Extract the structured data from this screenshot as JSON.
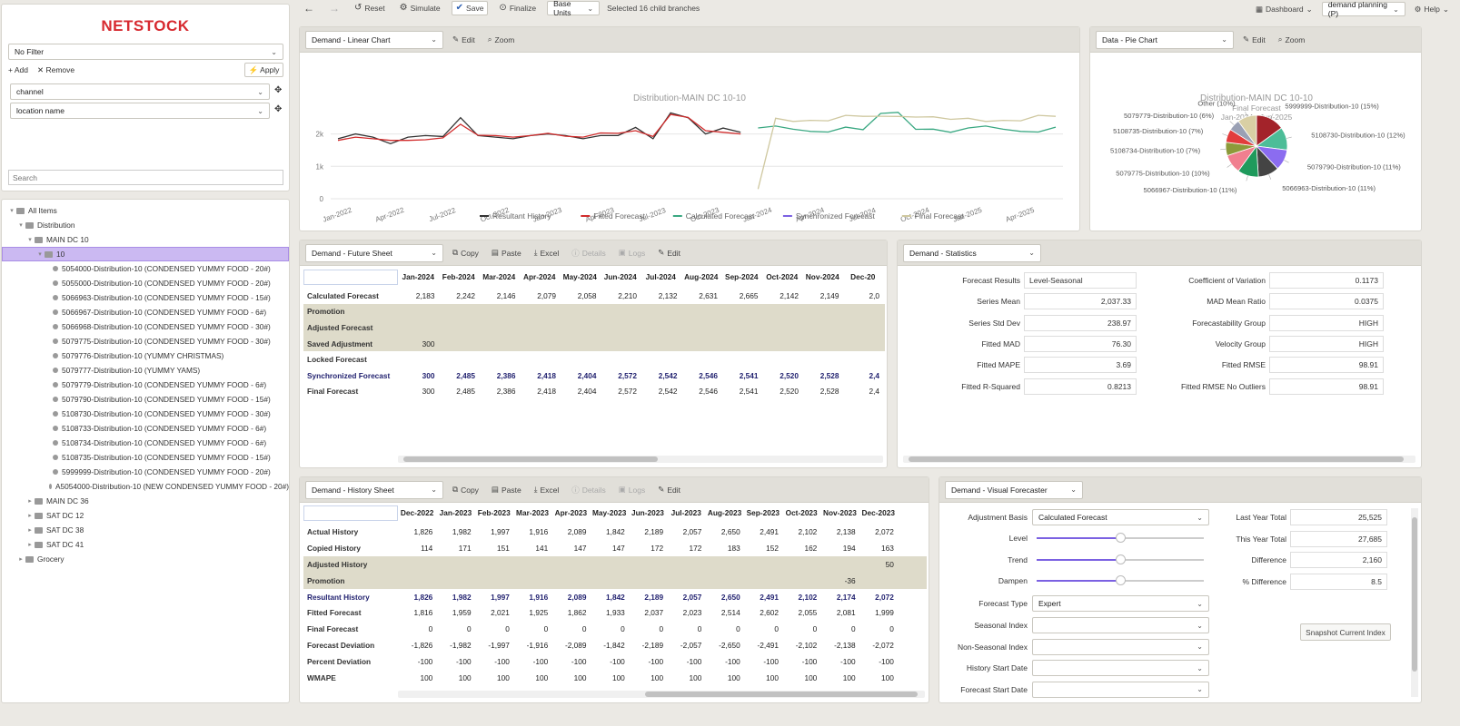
{
  "logo": "NETSTOCK",
  "toolbar": {
    "reset": "Reset",
    "simulate": "Simulate",
    "save": "Save",
    "finalize": "Finalize",
    "units": "Base Units",
    "selection": "Selected 16 child branches",
    "dashboard": "Dashboard",
    "plan": "demand planning (P)",
    "help": "Help"
  },
  "filter": {
    "value": "No Filter",
    "add": "Add",
    "remove": "Remove",
    "apply": "Apply",
    "fields": [
      "channel",
      "location name"
    ],
    "search_placeholder": "Search"
  },
  "tree": [
    {
      "label": "All Items",
      "level": 0,
      "type": "folder",
      "expanded": true
    },
    {
      "label": "Distribution",
      "level": 1,
      "type": "folder",
      "expanded": true
    },
    {
      "label": "MAIN DC 10",
      "level": 2,
      "type": "folder",
      "expanded": true
    },
    {
      "label": "10",
      "level": 3,
      "type": "folder",
      "expanded": true,
      "selected": true
    },
    {
      "label": "5054000-Distribution-10 (CONDENSED YUMMY FOOD - 20#)",
      "level": 4,
      "type": "item"
    },
    {
      "label": "5055000-Distribution-10 (CONDENSED YUMMY FOOD - 20#)",
      "level": 4,
      "type": "item"
    },
    {
      "label": "5066963-Distribution-10 (CONDENSED YUMMY FOOD - 15#)",
      "level": 4,
      "type": "item"
    },
    {
      "label": "5066967-Distribution-10 (CONDENSED YUMMY FOOD - 6#)",
      "level": 4,
      "type": "item"
    },
    {
      "label": "5066968-Distribution-10 (CONDENSED YUMMY FOOD - 30#)",
      "level": 4,
      "type": "item"
    },
    {
      "label": "5079775-Distribution-10 (CONDENSED YUMMY FOOD - 30#)",
      "level": 4,
      "type": "item"
    },
    {
      "label": "5079776-Distribution-10 (YUMMY CHRISTMAS)",
      "level": 4,
      "type": "item"
    },
    {
      "label": "5079777-Distribution-10 (YUMMY YAMS)",
      "level": 4,
      "type": "item"
    },
    {
      "label": "5079779-Distribution-10 (CONDENSED YUMMY FOOD - 6#)",
      "level": 4,
      "type": "item"
    },
    {
      "label": "5079790-Distribution-10 (CONDENSED YUMMY FOOD - 15#)",
      "level": 4,
      "type": "item"
    },
    {
      "label": "5108730-Distribution-10 (CONDENSED YUMMY FOOD - 30#)",
      "level": 4,
      "type": "item"
    },
    {
      "label": "5108733-Distribution-10 (CONDENSED YUMMY FOOD - 6#)",
      "level": 4,
      "type": "item"
    },
    {
      "label": "5108734-Distribution-10 (CONDENSED YUMMY FOOD - 6#)",
      "level": 4,
      "type": "item"
    },
    {
      "label": "5108735-Distribution-10 (CONDENSED YUMMY FOOD - 15#)",
      "level": 4,
      "type": "item"
    },
    {
      "label": "5999999-Distribution-10 (CONDENSED YUMMY FOOD - 20#)",
      "level": 4,
      "type": "item"
    },
    {
      "label": "A5054000-Distribution-10 (NEW CONDENSED YUMMY FOOD - 20#)",
      "level": 4,
      "type": "item"
    },
    {
      "label": "MAIN DC 36",
      "level": 2,
      "type": "folder",
      "expanded": false
    },
    {
      "label": "SAT DC 12",
      "level": 2,
      "type": "folder",
      "expanded": false
    },
    {
      "label": "SAT DC 38",
      "level": 2,
      "type": "folder",
      "expanded": false
    },
    {
      "label": "SAT DC 41",
      "level": 2,
      "type": "folder",
      "expanded": false
    },
    {
      "label": "Grocery",
      "level": 1,
      "type": "folder",
      "expanded": false
    }
  ],
  "linear": {
    "select": "Demand - Linear Chart",
    "edit": "Edit",
    "zoom": "Zoom"
  },
  "pie": {
    "select": "Data - Pie Chart",
    "edit": "Edit",
    "zoom": "Zoom"
  },
  "future": {
    "select": "Demand - Future Sheet",
    "tools": [
      "Copy",
      "Paste",
      "Excel",
      "Details",
      "Logs",
      "Edit"
    ],
    "months": [
      "Jan-2024",
      "Feb-2024",
      "Mar-2024",
      "Apr-2024",
      "May-2024",
      "Jun-2024",
      "Jul-2024",
      "Aug-2024",
      "Sep-2024",
      "Oct-2024",
      "Nov-2024",
      "Dec-20"
    ],
    "rows": [
      {
        "label": "Calculated Forecast",
        "shade": false,
        "values": [
          "2,183",
          "2,242",
          "2,146",
          "2,079",
          "2,058",
          "2,210",
          "2,132",
          "2,631",
          "2,665",
          "2,142",
          "2,149",
          "2,0"
        ]
      },
      {
        "label": "Promotion",
        "shade": true,
        "values": []
      },
      {
        "label": "Adjusted Forecast",
        "shade": true,
        "values": []
      },
      {
        "label": "Saved Adjustment",
        "shade": true,
        "values": [
          "300"
        ]
      },
      {
        "label": "Locked Forecast",
        "shade": false,
        "values": []
      },
      {
        "label": "Synchronized Forecast",
        "shade": false,
        "color": "#1f1f6e",
        "values": [
          "300",
          "2,485",
          "2,386",
          "2,418",
          "2,404",
          "2,572",
          "2,542",
          "2,546",
          "2,541",
          "2,520",
          "2,528",
          "2,4"
        ]
      },
      {
        "label": "Final Forecast",
        "shade": false,
        "values": [
          "300",
          "2,485",
          "2,386",
          "2,418",
          "2,404",
          "2,572",
          "2,542",
          "2,546",
          "2,541",
          "2,520",
          "2,528",
          "2,4"
        ]
      }
    ]
  },
  "stats": {
    "select": "Demand - Statistics",
    "items": [
      {
        "label": "Forecast Results",
        "value": "Level-Seasonal",
        "align": "left"
      },
      {
        "label": "Series Mean",
        "value": "2,037.33"
      },
      {
        "label": "Series Std Dev",
        "value": "238.97"
      },
      {
        "label": "Fitted MAD",
        "value": "76.30"
      },
      {
        "label": "Fitted MAPE",
        "value": "3.69"
      },
      {
        "label": "Fitted R-Squared",
        "value": "0.8213"
      }
    ],
    "items2": [
      {
        "label": "Coefficient of Variation",
        "value": "0.1173"
      },
      {
        "label": "MAD Mean Ratio",
        "value": "0.0375"
      },
      {
        "label": "Forecastability Group",
        "value": "HIGH"
      },
      {
        "label": "Velocity Group",
        "value": "HIGH"
      },
      {
        "label": "Fitted RMSE",
        "value": "98.91"
      },
      {
        "label": "Fitted RMSE No Outliers",
        "value": "98.91"
      }
    ]
  },
  "history": {
    "select": "Demand - History Sheet",
    "tools": [
      "Copy",
      "Paste",
      "Excel",
      "Details",
      "Logs",
      "Edit"
    ],
    "months": [
      "Dec-2022",
      "Jan-2023",
      "Feb-2023",
      "Mar-2023",
      "Apr-2023",
      "May-2023",
      "Jun-2023",
      "Jul-2023",
      "Aug-2023",
      "Sep-2023",
      "Oct-2023",
      "Nov-2023",
      "Dec-2023"
    ],
    "rows": [
      {
        "label": "Actual History",
        "shade": false,
        "values": [
          "1,826",
          "1,982",
          "1,997",
          "1,916",
          "2,089",
          "1,842",
          "2,189",
          "2,057",
          "2,650",
          "2,491",
          "2,102",
          "2,138",
          "2,072"
        ]
      },
      {
        "label": "Copied History",
        "shade": false,
        "values": [
          "114",
          "171",
          "151",
          "141",
          "147",
          "147",
          "172",
          "172",
          "183",
          "152",
          "162",
          "194",
          "163"
        ]
      },
      {
        "label": "Adjusted History",
        "shade": true,
        "values": [
          "",
          "",
          "",
          "",
          "",
          "",
          "",
          "",
          "",
          "",
          "",
          "",
          "50"
        ]
      },
      {
        "label": "Promotion",
        "shade": true,
        "values": [
          "",
          "",
          "",
          "",
          "",
          "",
          "",
          "",
          "",
          "",
          "",
          "-36",
          ""
        ]
      },
      {
        "label": "Resultant History",
        "shade": false,
        "color": "#1f1f6e",
        "values": [
          "1,826",
          "1,982",
          "1,997",
          "1,916",
          "2,089",
          "1,842",
          "2,189",
          "2,057",
          "2,650",
          "2,491",
          "2,102",
          "2,174",
          "2,072"
        ]
      },
      {
        "label": "Fitted Forecast",
        "shade": false,
        "values": [
          "1,816",
          "1,959",
          "2,021",
          "1,925",
          "1,862",
          "1,933",
          "2,037",
          "2,023",
          "2,514",
          "2,602",
          "2,055",
          "2,081",
          "1,999"
        ]
      },
      {
        "label": "Final Forecast",
        "shade": false,
        "values": [
          "0",
          "0",
          "0",
          "0",
          "0",
          "0",
          "0",
          "0",
          "0",
          "0",
          "0",
          "0",
          "0"
        ]
      },
      {
        "label": "Forecast Deviation",
        "shade": false,
        "values": [
          "-1,826",
          "-1,982",
          "-1,997",
          "-1,916",
          "-2,089",
          "-1,842",
          "-2,189",
          "-2,057",
          "-2,650",
          "-2,491",
          "-2,102",
          "-2,138",
          "-2,072"
        ]
      },
      {
        "label": "Percent Deviation",
        "shade": false,
        "values": [
          "-100",
          "-100",
          "-100",
          "-100",
          "-100",
          "-100",
          "-100",
          "-100",
          "-100",
          "-100",
          "-100",
          "-100",
          "-100"
        ]
      },
      {
        "label": "WMAPE",
        "shade": false,
        "values": [
          "100",
          "100",
          "100",
          "100",
          "100",
          "100",
          "100",
          "100",
          "100",
          "100",
          "100",
          "100",
          "100"
        ]
      }
    ]
  },
  "visual": {
    "select": "Demand - Visual Forecaster",
    "adjustment_basis_label": "Adjustment Basis",
    "adjustment_basis": "Calculated Forecast",
    "sliders": [
      {
        "label": "Level",
        "value": 0.5
      },
      {
        "label": "Trend",
        "value": 0.5
      },
      {
        "label": "Dampen",
        "value": 0.5
      }
    ],
    "forecast_type_label": "Forecast Type",
    "forecast_type": "Expert",
    "fields": [
      "Seasonal Index",
      "Non-Seasonal Index",
      "History Start Date",
      "Forecast Start Date"
    ],
    "totals": [
      {
        "label": "Last Year Total",
        "value": "25,525"
      },
      {
        "label": "This Year Total",
        "value": "27,685"
      },
      {
        "label": "Difference",
        "value": "2,160"
      },
      {
        "label": "% Difference",
        "value": "8.5"
      }
    ],
    "snapshot": "Snapshot Current Index"
  },
  "chart_data": [
    {
      "type": "line",
      "title": "Distribution-MAIN DC 10-10",
      "xlabels": [
        "Jan-2022",
        "Apr-2022",
        "Jul-2022",
        "Oct-2022",
        "Jan-2023",
        "Apr-2023",
        "Jul-2023",
        "Oct-2023",
        "Jan-2024",
        "Apr-2024",
        "Jul-2024",
        "Oct-2024",
        "Jan-2025",
        "Apr-2025"
      ],
      "yticks": [
        "0",
        "1k",
        "2k"
      ],
      "ylim": [
        0,
        2800
      ],
      "grid": true,
      "legend": "bottom",
      "series": [
        {
          "name": "Resultant History",
          "color": "#333333",
          "start": 0,
          "values": [
            1850,
            2000,
            1900,
            1700,
            1900,
            1950,
            1920,
            2500,
            1950,
            1900,
            1850,
            1950,
            2000,
            1950,
            1850,
            1950,
            1950,
            2200,
            1850,
            2650,
            2500,
            2000,
            2180,
            2050
          ]
        },
        {
          "name": "Fitted Forecast",
          "color": "#d12c2c",
          "start": 0,
          "values": [
            1800,
            1900,
            1850,
            1800,
            1800,
            1820,
            1880,
            2300,
            1960,
            1950,
            1900,
            1950,
            2020,
            1930,
            1900,
            2030,
            2020,
            2100,
            1920,
            2600,
            2510,
            2100,
            2050,
            2000
          ]
        },
        {
          "name": "Calculated Forecast",
          "color": "#3aa882",
          "start": 24,
          "values": [
            2183,
            2242,
            2146,
            2079,
            2058,
            2210,
            2132,
            2631,
            2665,
            2142,
            2149,
            2050,
            2183,
            2242,
            2146,
            2079,
            2058,
            2210
          ]
        },
        {
          "name": "Synchronized Forecast",
          "color": "#7b61e2",
          "start": 24,
          "values": []
        },
        {
          "name": "Final Forecast",
          "color": "#cfc8a0",
          "start": 24,
          "values": [
            300,
            2485,
            2386,
            2418,
            2404,
            2572,
            2542,
            2546,
            2541,
            2520,
            2528,
            2450,
            2485,
            2386,
            2418,
            2404,
            2572,
            2542
          ]
        }
      ]
    },
    {
      "type": "pie",
      "title": "Distribution-MAIN DC 10-10",
      "subtitle": "Final Forecast",
      "subtitle2": "Jan-2024 - Jun-2025",
      "slices": [
        {
          "label": "5999999-Distribution-10 (15%)",
          "value": 15,
          "color": "#a3232a"
        },
        {
          "label": "5108730-Distribution-10 (12%)",
          "value": 12,
          "color": "#4dbd98"
        },
        {
          "label": "5079790-Distribution-10 (11%)",
          "value": 11,
          "color": "#8b6cf0"
        },
        {
          "label": "5066963-Distribution-10 (11%)",
          "value": 11,
          "color": "#444444"
        },
        {
          "label": "5066967-Distribution-10 (11%)",
          "value": 11,
          "color": "#1f9a5c"
        },
        {
          "label": "5079775-Distribution-10 (10%)",
          "value": 10,
          "color": "#f07f8f"
        },
        {
          "label": "5108734-Distribution-10 (7%)",
          "value": 7,
          "color": "#8c9a3a"
        },
        {
          "label": "5108735-Distribution-10 (7%)",
          "value": 7,
          "color": "#e23c3c"
        },
        {
          "label": "5079779-Distribution-10 (6%)",
          "value": 6,
          "color": "#9aa0b4"
        },
        {
          "label": "Other (10%)",
          "value": 10,
          "color": "#d9cfa4"
        }
      ]
    }
  ]
}
